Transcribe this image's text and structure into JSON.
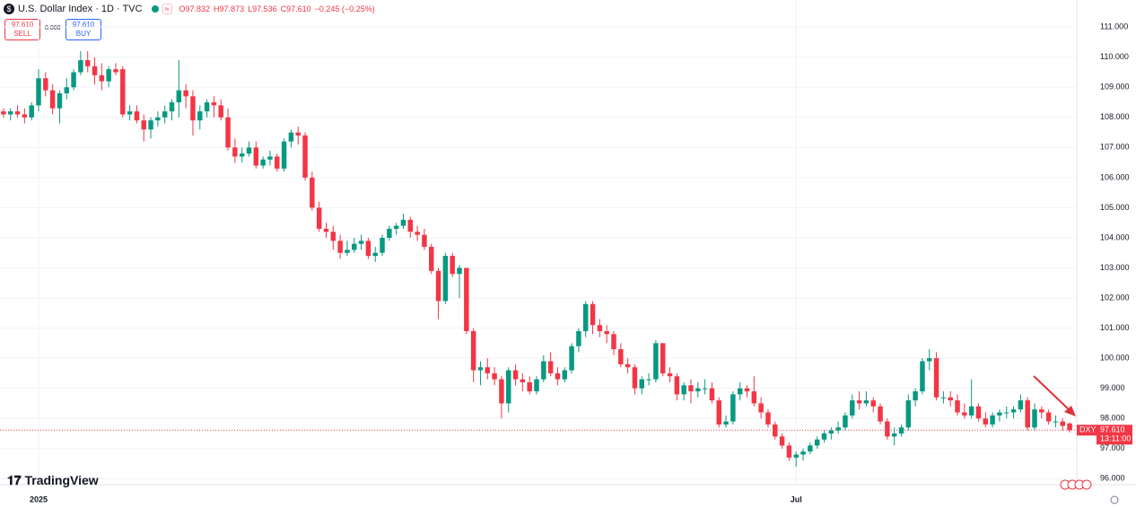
{
  "header": {
    "symbol": "U.S. Dollar Index · 1D · TVC",
    "ohlc_items": [
      "O97.832",
      "H97.873",
      "L97.536",
      "C97.610"
    ],
    "change": "−0.245 (−0.25%)"
  },
  "trade": {
    "sell_price": "97.610",
    "sell_label": "SELL",
    "spread": "0.000",
    "buy_price": "97.610",
    "buy_label": "BUY"
  },
  "price_tag": {
    "symbol": "DXY",
    "price": "97.610",
    "countdown": "13:11:00"
  },
  "brand": "TradingView",
  "chart_data": {
    "type": "candlestick",
    "up_color": "#089981",
    "down_color": "#f23645",
    "ylim": [
      95.8,
      111.9
    ],
    "yticks": [
      {
        "value": 96,
        "label": "96.000"
      },
      {
        "value": 97,
        "label": "97.000"
      },
      {
        "value": 98,
        "label": "98.000"
      },
      {
        "value": 99,
        "label": "99.000"
      },
      {
        "value": 100,
        "label": "100.000"
      },
      {
        "value": 101,
        "label": "101.000"
      },
      {
        "value": 102,
        "label": "102.000"
      },
      {
        "value": 103,
        "label": "103.000"
      },
      {
        "value": 104,
        "label": "104.000"
      },
      {
        "value": 105,
        "label": "105.000"
      },
      {
        "value": 106,
        "label": "106.000"
      },
      {
        "value": 107,
        "label": "107.000"
      },
      {
        "value": 108,
        "label": "108.000"
      },
      {
        "value": 109,
        "label": "109.000"
      },
      {
        "value": 110,
        "label": "110.000"
      },
      {
        "value": 111,
        "label": "111.000"
      }
    ],
    "xticks": [
      {
        "value": 5,
        "label": "2025"
      },
      {
        "value": 113,
        "label": "Jul"
      }
    ],
    "grid": true,
    "ohlc": [
      [
        108.2,
        108.3,
        108.0,
        108.1
      ],
      [
        108.1,
        108.3,
        107.9,
        108.2
      ],
      [
        108.2,
        108.4,
        108.0,
        108.1
      ],
      [
        108.1,
        108.3,
        107.8,
        108.0
      ],
      [
        108.0,
        108.5,
        107.9,
        108.4
      ],
      [
        108.4,
        109.6,
        108.2,
        109.3
      ],
      [
        109.3,
        109.5,
        108.7,
        108.9
      ],
      [
        108.9,
        109.1,
        108.1,
        108.3
      ],
      [
        108.3,
        108.9,
        107.8,
        108.8
      ],
      [
        108.8,
        109.3,
        108.6,
        109.0
      ],
      [
        109.0,
        109.6,
        108.9,
        109.5
      ],
      [
        109.5,
        110.2,
        109.4,
        109.9
      ],
      [
        109.9,
        110.2,
        109.5,
        109.7
      ],
      [
        109.7,
        110.0,
        109.1,
        109.4
      ],
      [
        109.4,
        109.8,
        108.9,
        109.2
      ],
      [
        109.2,
        109.7,
        109.0,
        109.6
      ],
      [
        109.6,
        109.8,
        109.4,
        109.5
      ],
      [
        109.6,
        109.7,
        108.0,
        108.1
      ],
      [
        108.1,
        108.4,
        107.9,
        108.2
      ],
      [
        108.2,
        108.4,
        107.8,
        107.9
      ],
      [
        107.9,
        108.1,
        107.2,
        107.6
      ],
      [
        107.6,
        108.0,
        107.3,
        107.9
      ],
      [
        107.9,
        108.2,
        107.7,
        108.0
      ],
      [
        108.0,
        108.4,
        107.8,
        108.2
      ],
      [
        108.2,
        108.6,
        107.9,
        108.5
      ],
      [
        108.5,
        109.9,
        108.0,
        108.9
      ],
      [
        108.9,
        109.1,
        108.3,
        108.7
      ],
      [
        108.7,
        108.9,
        107.4,
        107.9
      ],
      [
        107.9,
        108.4,
        107.6,
        108.2
      ],
      [
        108.2,
        108.6,
        108.0,
        108.5
      ],
      [
        108.5,
        108.7,
        108.0,
        108.4
      ],
      [
        108.4,
        108.6,
        107.9,
        108.0
      ],
      [
        108.0,
        108.3,
        106.9,
        107.0
      ],
      [
        107.0,
        107.3,
        106.5,
        106.7
      ],
      [
        106.7,
        107.0,
        106.5,
        106.8
      ],
      [
        106.8,
        107.2,
        106.7,
        107.0
      ],
      [
        107.0,
        107.2,
        106.3,
        106.4
      ],
      [
        106.4,
        106.7,
        106.3,
        106.6
      ],
      [
        106.6,
        106.9,
        106.4,
        106.7
      ],
      [
        106.7,
        106.8,
        106.2,
        106.3
      ],
      [
        106.3,
        107.3,
        106.2,
        107.2
      ],
      [
        107.2,
        107.6,
        107.0,
        107.5
      ],
      [
        107.5,
        107.7,
        107.1,
        107.4
      ],
      [
        107.4,
        107.5,
        105.9,
        106.0
      ],
      [
        106.0,
        106.2,
        104.9,
        105.0
      ],
      [
        105.0,
        105.2,
        104.2,
        104.3
      ],
      [
        104.3,
        104.5,
        104.0,
        104.2
      ],
      [
        104.2,
        104.4,
        103.6,
        103.9
      ],
      [
        103.9,
        104.1,
        103.3,
        103.5
      ],
      [
        103.5,
        103.9,
        103.4,
        103.6
      ],
      [
        103.6,
        104.0,
        103.5,
        103.8
      ],
      [
        103.8,
        104.1,
        103.6,
        103.9
      ],
      [
        103.9,
        104.0,
        103.3,
        103.4
      ],
      [
        103.4,
        103.7,
        103.2,
        103.5
      ],
      [
        103.5,
        104.1,
        103.4,
        104.0
      ],
      [
        104.0,
        104.4,
        103.9,
        104.3
      ],
      [
        104.3,
        104.5,
        104.1,
        104.4
      ],
      [
        104.4,
        104.8,
        104.3,
        104.6
      ],
      [
        104.6,
        104.7,
        104.0,
        104.2
      ],
      [
        104.2,
        104.4,
        103.9,
        104.1
      ],
      [
        104.1,
        104.3,
        103.6,
        103.7
      ],
      [
        103.7,
        103.8,
        102.8,
        102.9
      ],
      [
        102.9,
        103.0,
        101.3,
        101.9
      ],
      [
        101.9,
        103.5,
        101.8,
        103.4
      ],
      [
        103.4,
        103.5,
        102.7,
        102.8
      ],
      [
        102.8,
        103.1,
        102.0,
        103.0
      ],
      [
        103.0,
        103.0,
        100.8,
        100.9
      ],
      [
        100.9,
        101.0,
        99.2,
        99.6
      ],
      [
        99.6,
        99.9,
        99.1,
        99.7
      ],
      [
        99.7,
        100.0,
        99.3,
        99.5
      ],
      [
        99.5,
        99.7,
        99.1,
        99.3
      ],
      [
        99.3,
        99.4,
        98.0,
        98.5
      ],
      [
        98.5,
        99.7,
        98.2,
        99.6
      ],
      [
        99.6,
        99.8,
        99.1,
        99.3
      ],
      [
        99.3,
        99.5,
        98.9,
        99.2
      ],
      [
        99.2,
        99.4,
        98.8,
        98.9
      ],
      [
        98.9,
        99.4,
        98.8,
        99.3
      ],
      [
        99.3,
        100.1,
        99.2,
        99.9
      ],
      [
        99.9,
        100.2,
        99.4,
        99.5
      ],
      [
        99.5,
        99.7,
        99.1,
        99.3
      ],
      [
        99.3,
        99.7,
        99.2,
        99.6
      ],
      [
        99.6,
        100.5,
        99.5,
        100.4
      ],
      [
        100.4,
        101.0,
        100.2,
        100.9
      ],
      [
        100.9,
        101.9,
        100.7,
        101.8
      ],
      [
        101.8,
        101.9,
        100.8,
        101.1
      ],
      [
        101.1,
        101.3,
        100.7,
        100.9
      ],
      [
        100.9,
        101.1,
        100.5,
        100.8
      ],
      [
        100.8,
        100.9,
        100.1,
        100.3
      ],
      [
        100.3,
        100.5,
        99.7,
        99.8
      ],
      [
        99.8,
        100.0,
        99.5,
        99.7
      ],
      [
        99.7,
        99.8,
        98.8,
        99.0
      ],
      [
        99.0,
        99.4,
        98.8,
        99.3
      ],
      [
        99.3,
        99.5,
        99.1,
        99.3
      ],
      [
        99.3,
        100.6,
        99.2,
        100.5
      ],
      [
        100.5,
        100.5,
        99.4,
        99.5
      ],
      [
        99.5,
        99.7,
        99.2,
        99.4
      ],
      [
        99.4,
        99.5,
        98.6,
        98.8
      ],
      [
        98.8,
        99.2,
        98.6,
        99.1
      ],
      [
        99.1,
        99.3,
        98.5,
        98.9
      ],
      [
        98.9,
        99.2,
        98.7,
        99.0
      ],
      [
        99.0,
        99.3,
        98.8,
        99.0
      ],
      [
        99.0,
        99.2,
        98.5,
        98.6
      ],
      [
        98.6,
        98.7,
        97.7,
        97.8
      ],
      [
        97.8,
        98.1,
        97.7,
        97.9
      ],
      [
        97.9,
        98.9,
        97.8,
        98.8
      ],
      [
        98.8,
        99.2,
        98.6,
        99.0
      ],
      [
        99.0,
        99.1,
        98.7,
        98.9
      ],
      [
        98.9,
        99.4,
        98.4,
        98.5
      ],
      [
        98.5,
        98.7,
        98.0,
        98.2
      ],
      [
        98.2,
        98.3,
        97.7,
        97.8
      ],
      [
        97.8,
        97.9,
        97.3,
        97.4
      ],
      [
        97.4,
        97.5,
        97.0,
        97.1
      ],
      [
        97.1,
        97.2,
        96.6,
        96.7
      ],
      [
        96.7,
        96.9,
        96.4,
        96.8
      ],
      [
        96.8,
        97.0,
        96.6,
        96.9
      ],
      [
        96.9,
        97.2,
        96.8,
        97.1
      ],
      [
        97.1,
        97.4,
        97.0,
        97.3
      ],
      [
        97.3,
        97.6,
        97.2,
        97.5
      ],
      [
        97.5,
        97.7,
        97.3,
        97.6
      ],
      [
        97.6,
        97.9,
        97.5,
        97.7
      ],
      [
        97.7,
        98.2,
        97.6,
        98.1
      ],
      [
        98.1,
        98.8,
        98.0,
        98.6
      ],
      [
        98.6,
        98.9,
        98.3,
        98.5
      ],
      [
        98.5,
        98.9,
        98.4,
        98.6
      ],
      [
        98.6,
        98.7,
        98.2,
        98.4
      ],
      [
        98.4,
        98.5,
        97.8,
        97.9
      ],
      [
        97.9,
        98.0,
        97.3,
        97.4
      ],
      [
        97.4,
        97.7,
        97.1,
        97.5
      ],
      [
        97.5,
        97.8,
        97.4,
        97.7
      ],
      [
        97.7,
        98.8,
        97.6,
        98.6
      ],
      [
        98.6,
        99.0,
        98.4,
        98.9
      ],
      [
        98.9,
        100.0,
        98.8,
        99.9
      ],
      [
        99.9,
        100.3,
        99.6,
        100.0
      ],
      [
        100.0,
        100.2,
        98.6,
        98.7
      ],
      [
        98.7,
        98.9,
        98.5,
        98.7
      ],
      [
        98.7,
        98.9,
        98.4,
        98.6
      ],
      [
        98.6,
        98.8,
        98.1,
        98.2
      ],
      [
        98.2,
        98.5,
        98.0,
        98.1
      ],
      [
        98.1,
        99.3,
        98.0,
        98.4
      ],
      [
        98.4,
        98.5,
        97.9,
        98.0
      ],
      [
        98.0,
        98.2,
        97.7,
        97.8
      ],
      [
        97.8,
        98.2,
        97.7,
        98.1
      ],
      [
        98.1,
        98.3,
        97.9,
        98.2
      ],
      [
        98.2,
        98.4,
        98.0,
        98.2
      ],
      [
        98.2,
        98.4,
        98.0,
        98.3
      ],
      [
        98.3,
        98.8,
        98.2,
        98.6
      ],
      [
        98.6,
        98.7,
        97.6,
        97.7
      ],
      [
        97.7,
        98.5,
        97.6,
        98.3
      ],
      [
        98.3,
        98.4,
        98.0,
        98.2
      ],
      [
        98.2,
        98.3,
        97.8,
        97.9
      ],
      [
        97.9,
        98.1,
        97.7,
        97.9
      ],
      [
        97.9,
        98.0,
        97.6,
        97.75
      ],
      [
        97.832,
        97.873,
        97.536,
        97.61
      ]
    ]
  }
}
